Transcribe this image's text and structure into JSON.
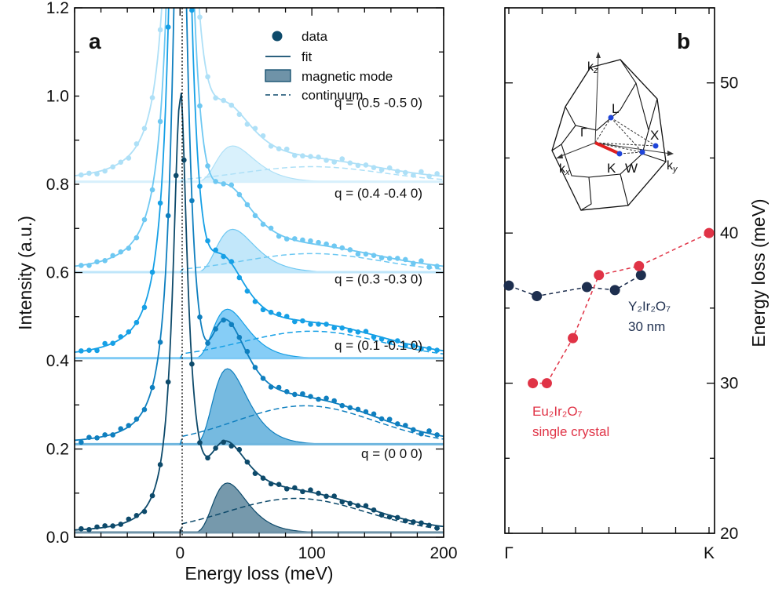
{
  "panel_a": {
    "label": "a",
    "xlabel": "Energy loss (meV)",
    "ylabel": "Intensity (a.u.)",
    "xticks": [
      "0",
      "100",
      "200"
    ],
    "yticks": [
      "0.0",
      "0.2",
      "0.4",
      "0.6",
      "0.8",
      "1.0",
      "1.2"
    ],
    "legend": {
      "data": "data",
      "fit": "fit",
      "magnetic": "magnetic mode",
      "continuum": "continuum"
    }
  },
  "panel_b": {
    "label": "b",
    "ylabel": "Energy loss (meV)",
    "xticks": [
      "Γ",
      "K"
    ],
    "yticks": [
      "20",
      "30",
      "40",
      "50"
    ],
    "eu_label_line1": "Eu₂Ir₂O₇",
    "eu_label_line2": "single crystal",
    "y_label_line1": "Y₂Ir₂O₇",
    "y_label_line2": "30 nm",
    "bz": {
      "kz": "k",
      "kz_sub": "z",
      "kx": "k",
      "kx_sub": "x",
      "ky": "k",
      "ky_sub": "y",
      "L": "L",
      "X": "X",
      "Gamma": "Γ",
      "K": "K",
      "W": "W"
    }
  },
  "colors": {
    "q0": "#0d4a6b",
    "q1": "#0f7fbf",
    "q3": "#16a0e6",
    "q4": "#6ec8f2",
    "q5": "#aee0f7",
    "eu": "#e03346",
    "y": "#1e2f4f"
  },
  "chart_data": [
    {
      "type": "line",
      "panel": "a",
      "xlim": [
        -80,
        200
      ],
      "ylim": [
        0,
        1.2
      ],
      "series": [
        {
          "name": "q = (0 0 0)",
          "offset": 0.01,
          "peak_height": 0.98,
          "mode_center": 36,
          "mode_amp": 0.113,
          "cont_amp": 0.078,
          "cont_center": 88,
          "color": "q0"
        },
        {
          "name": "q = (0.1 -0.1 0)",
          "offset": 0.21,
          "peak_height": 1.5,
          "mode_center": 36,
          "mode_amp": 0.172,
          "cont_amp": 0.088,
          "cont_center": 95,
          "color": "q1"
        },
        {
          "name": "q = (0.3 -0.3 0)",
          "offset": 0.405,
          "peak_height": 2.2,
          "mode_center": 36,
          "mode_amp": 0.112,
          "cont_amp": 0.062,
          "cont_center": 100,
          "color": "q3"
        },
        {
          "name": "q = (0.4 -0.4 0)",
          "offset": 0.6,
          "peak_height": 2.2,
          "mode_center": 40,
          "mode_amp": 0.098,
          "cont_amp": 0.043,
          "cont_center": 100,
          "color": "q4"
        },
        {
          "name": "q = (0.5 -0.5 0)",
          "offset": 0.805,
          "peak_height": 2.2,
          "mode_center": 40,
          "mode_amp": 0.082,
          "cont_amp": 0.035,
          "cont_center": 100,
          "color": "q5"
        }
      ]
    },
    {
      "type": "scatter",
      "panel": "b",
      "ylim": [
        20,
        55
      ],
      "xlim": [
        0,
        1
      ],
      "series": [
        {
          "name": "Y₂Ir₂O₇ 30 nm",
          "color": "y",
          "x": [
            0.0,
            0.14,
            0.39,
            0.53,
            0.66
          ],
          "y": [
            36.5,
            35.8,
            36.4,
            36.2,
            37.2
          ]
        },
        {
          "name": "Eu₂Ir₂O₇ single crystal",
          "color": "eu",
          "x": [
            0.12,
            0.19,
            0.32,
            0.45,
            0.65,
            1.0
          ],
          "y": [
            30.0,
            30.0,
            33.0,
            37.2,
            37.8,
            40.0
          ]
        }
      ]
    }
  ]
}
